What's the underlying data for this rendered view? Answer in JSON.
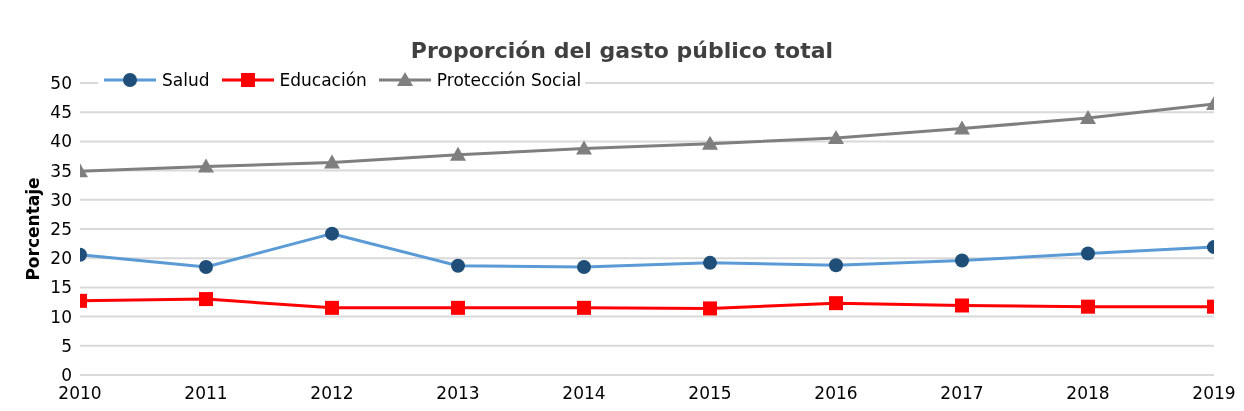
{
  "chart_data": {
    "type": "line",
    "title": "Proporción del gasto público total",
    "ylabel": "Porcentaje",
    "x": [
      2010,
      2011,
      2012,
      2013,
      2014,
      2015,
      2016,
      2017,
      2018,
      2019
    ],
    "xlim": [
      2010,
      2019
    ],
    "xticks": [
      2010,
      2011,
      2012,
      2013,
      2014,
      2015,
      2016,
      2017,
      2018,
      2019
    ],
    "ylim": [
      0,
      50
    ],
    "yticks": [
      0,
      5,
      10,
      15,
      20,
      25,
      30,
      35,
      40,
      45,
      50
    ],
    "grid": "y",
    "legend": "top left",
    "series": [
      {
        "name": "Salud",
        "color": "#5b9bd5",
        "marker": "circle",
        "values": [
          20.6,
          18.5,
          24.2,
          18.7,
          18.5,
          19.2,
          18.8,
          19.6,
          20.8,
          21.9
        ]
      },
      {
        "name": "Educación",
        "color": "#ff0000",
        "marker": "square",
        "values": [
          12.7,
          13.0,
          11.5,
          11.5,
          11.5,
          11.4,
          12.3,
          11.9,
          11.7,
          11.7
        ]
      },
      {
        "name": "Protección Social",
        "color": "#7f7f7f",
        "marker": "triangle",
        "values": [
          34.9,
          35.7,
          36.4,
          37.7,
          38.8,
          39.6,
          40.6,
          42.2,
          44.0,
          46.4
        ]
      }
    ]
  }
}
